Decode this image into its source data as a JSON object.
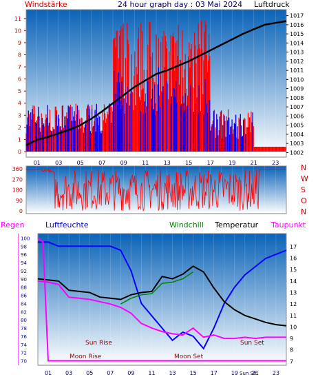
{
  "header": {
    "left_label": "Windstärke",
    "title": "24 hour graph day : 03 Mai 2024",
    "right_label": "Luftdruck"
  },
  "colors": {
    "wind": "#ff0000",
    "gust_low": "#0000ff",
    "pressure": "#000000",
    "direction": "#ff0000",
    "humidity": "#0000ff",
    "windchill": "#008000",
    "temperature": "#000000",
    "dewpoint": "#ff00ff",
    "axis_red": "#cc0000",
    "axis_blue": "#0000cc",
    "bg_top": "#0a63b8",
    "bg_bottom": "#ffffff"
  },
  "legend": {
    "regen": "Regen",
    "luftfeuchte": "Luftfeuchte",
    "windchill": "Windchill",
    "temperatur": "Temperatur",
    "taupunkt": "Taupunkt"
  },
  "compass": [
    "N",
    "W",
    "S",
    "O",
    "N"
  ],
  "events": {
    "sun_rise": "Sun Rise",
    "sun_set": "Sun Set",
    "moon_rise": "Moon Rise",
    "moon_set": "Moon Set",
    "sun_sft": "Sun Sft"
  },
  "chart_data": [
    {
      "type": "line",
      "title": "24 hour graph day : 03 Mai 2024",
      "x_ticks": [
        "01",
        "03",
        "05",
        "07",
        "09",
        "11",
        "13",
        "15",
        "17",
        "19",
        "21",
        "23"
      ],
      "y_left_ticks": [
        "0",
        "1",
        "2",
        "3",
        "4",
        "5",
        "6",
        "7",
        "8",
        "9",
        "10",
        "11"
      ],
      "y_right_ticks": [
        "1002",
        "1003",
        "1004",
        "1005",
        "1006",
        "1007",
        "1008",
        "1009",
        "1010",
        "1011",
        "1012",
        "1013",
        "1014",
        "1015",
        "1016",
        "1017"
      ],
      "ylim_left": [
        0,
        11.5
      ],
      "ylim_right": [
        1001.8,
        1017.2
      ],
      "series": [
        {
          "name": "Luftdruck",
          "axis": "right",
          "x": [
            0,
            1,
            2,
            3,
            4,
            5,
            6,
            7,
            8,
            9,
            10,
            11,
            12,
            13,
            14,
            15,
            16,
            17,
            18,
            19,
            20,
            21,
            22,
            23,
            24
          ],
          "values": [
            1002.8,
            1003.4,
            1003.7,
            1004.1,
            1004.5,
            1005.0,
            1005.7,
            1006.5,
            1007.4,
            1008.3,
            1009.2,
            1009.9,
            1010.6,
            1011.0,
            1011.5,
            1012.0,
            1012.6,
            1013.2,
            1013.8,
            1014.4,
            1015.0,
            1015.5,
            1016.0,
            1016.2,
            1016.4
          ]
        }
      ]
    },
    {
      "type": "line",
      "title": "",
      "y_left_ticks": [
        "0",
        "90",
        "180",
        "270",
        "360"
      ],
      "y_right_ticks": [
        "N",
        "W",
        "S",
        "O",
        "N"
      ],
      "ylim": [
        0,
        360
      ]
    },
    {
      "type": "line",
      "title": "",
      "x_ticks": [
        "01",
        "03",
        "05",
        "07",
        "09",
        "11",
        "13",
        "15",
        "17",
        "19",
        "21",
        "23"
      ],
      "y_left_ticks": [
        "70",
        "72",
        "74",
        "76",
        "78",
        "80",
        "82",
        "84",
        "86",
        "88",
        "90",
        "92",
        "94",
        "96",
        "98",
        "100"
      ],
      "y_right_ticks": [
        "7",
        "8",
        "9",
        "10",
        "11",
        "12",
        "13",
        "14",
        "15",
        "16",
        "17"
      ],
      "ylim_left": [
        69.6,
        100.4
      ],
      "ylim_right": [
        6.9,
        17.9
      ],
      "series": [
        {
          "name": "Luftfeuchte",
          "axis": "left",
          "x": [
            0,
            1,
            2,
            3,
            4,
            5,
            6,
            7,
            8,
            9,
            10,
            11,
            12,
            13,
            14,
            15,
            16,
            17,
            18,
            19,
            20,
            21,
            22,
            23,
            24
          ],
          "values": [
            99,
            99,
            98,
            98,
            98,
            98,
            98,
            98,
            97,
            92,
            84,
            81,
            78,
            75,
            77,
            76,
            73,
            78,
            84,
            88,
            91,
            93,
            95,
            96,
            97
          ]
        },
        {
          "name": "Temperatur",
          "axis": "right",
          "x": [
            0,
            1,
            2,
            3,
            4,
            5,
            6,
            7,
            8,
            9,
            10,
            11,
            12,
            13,
            14,
            15,
            16,
            17,
            18,
            19,
            20,
            21,
            22,
            23,
            24
          ],
          "values": [
            14.2,
            14.1,
            14.0,
            13.2,
            13.1,
            13.0,
            12.6,
            12.5,
            12.4,
            12.8,
            13.0,
            13.1,
            14.4,
            14.2,
            14.6,
            15.3,
            14.8,
            13.4,
            12.2,
            11.5,
            11.0,
            10.7,
            10.4,
            10.2,
            10.1
          ]
        },
        {
          "name": "Taupunkt",
          "axis": "right",
          "x": [
            0,
            1,
            2,
            3,
            4,
            5,
            6,
            7,
            8,
            9,
            10,
            11,
            12,
            13,
            14,
            15,
            16,
            17,
            18,
            19,
            20,
            21,
            22,
            23,
            24
          ],
          "values": [
            14.0,
            13.9,
            13.7,
            12.6,
            12.5,
            12.4,
            12.2,
            12.0,
            11.7,
            11.2,
            10.3,
            9.9,
            9.6,
            9.4,
            9.3,
            9.9,
            9.1,
            9.3,
            9.0,
            9.0,
            9.1,
            9.0,
            9.1,
            9.1,
            9.1
          ]
        },
        {
          "name": "Windchill",
          "axis": "right",
          "x": [
            8,
            9,
            10,
            11,
            12,
            13,
            14,
            15
          ],
          "values": [
            12.0,
            12.5,
            12.8,
            12.9,
            13.8,
            13.9,
            14.2,
            14.8
          ]
        },
        {
          "name": "Regen",
          "axis": "left",
          "x": [
            0,
            0.5,
            1,
            23,
            24
          ],
          "values": [
            100,
            99,
            70,
            70,
            70
          ]
        }
      ]
    }
  ]
}
